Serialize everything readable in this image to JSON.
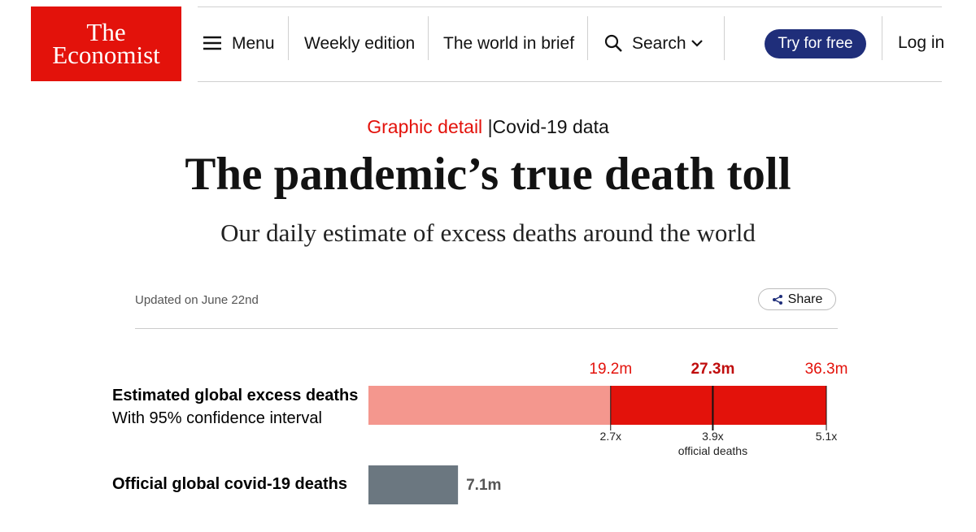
{
  "header": {
    "logo": [
      "The",
      "Economist"
    ],
    "nav": [
      "Menu",
      "Weekly edition",
      "The world in brief",
      "Search"
    ],
    "cta": "Try for free",
    "login": "Log in"
  },
  "article": {
    "section": "Graphic detail",
    "separator": "|",
    "topic": "Covid-19 data",
    "title": "The pandemic’s true death toll",
    "subtitle": "Our daily estimate of excess deaths around the world",
    "updated": "Updated on June 22nd",
    "share": "Share"
  },
  "chart_data": {
    "type": "bar",
    "estimate": {
      "label": "Estimated global excess deaths",
      "sublabel": "With 95% confidence interval",
      "values": [
        19.2,
        27.3,
        36.3
      ],
      "value_labels": [
        "19.2m",
        "27.3m",
        "36.3m"
      ],
      "multiples": [
        "2.7x",
        "3.9x",
        "5.1x"
      ],
      "multiple_note": "official deaths",
      "colors": [
        "#f4978e",
        "#e3120b"
      ]
    },
    "official": {
      "label": "Official global covid-19 deaths",
      "values": [
        7.1
      ],
      "value_labels": [
        "7.1m"
      ],
      "color": "#6b7780"
    }
  }
}
